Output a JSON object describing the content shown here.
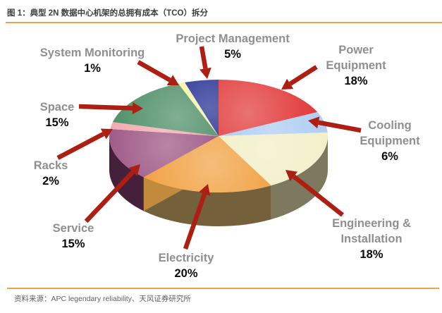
{
  "header": {
    "title": "图 1：典型 2N 数据中心机架的总拥有成本（TCO）拆分"
  },
  "footer": {
    "source": "资料来源：APC legendary reliability、天风证券研究所"
  },
  "theme": {
    "background": "#FFFFFF",
    "rule_color": "#F0A14E",
    "title_color": "#3D3D3D",
    "source_color": "#606060",
    "label_color": "#8F8F8F",
    "pct_color": "#0A0A0A",
    "arrow_color": "#AC1F12",
    "edge_wall_color": "#C28A3C"
  },
  "chart_data": {
    "type": "pie",
    "style": "3d",
    "direction": "clockwise-from-top",
    "title": "典型 2N 数据中心机架的总拥有成本（TCO）拆分",
    "unit": "%",
    "legend_position": "none",
    "categories": [
      "Power Equipment",
      "Cooling Equipment",
      "Engineering & Installation",
      "Electricity",
      "Service",
      "Racks",
      "Space",
      "System Monitoring",
      "Project Management"
    ],
    "values": [
      18,
      6,
      18,
      20,
      15,
      2,
      15,
      1,
      5
    ],
    "slices": [
      {
        "label": "Power Equipment",
        "value": 18,
        "pct_text": "18%",
        "color": "#E23B3B",
        "side_color": "#8C2C2C"
      },
      {
        "label": "Cooling Equipment",
        "value": 6,
        "pct_text": "6%",
        "color": "#ABCBF2",
        "side_color": "#5F7FA6"
      },
      {
        "label": "Engineering & Installation",
        "value": 18,
        "pct_text": "18%",
        "color": "#F2EFC8",
        "side_color": "#7C795F"
      },
      {
        "label": "Electricity",
        "value": 20,
        "pct_text": "20%",
        "color": "#F1A346",
        "side_color": "#75603C"
      },
      {
        "label": "Service",
        "value": 15,
        "pct_text": "15%",
        "color": "#9C5584",
        "side_color": "#44203A"
      },
      {
        "label": "Racks",
        "value": 2,
        "pct_text": "2%",
        "color": "#F2A6AC",
        "side_color": "#8A565C"
      },
      {
        "label": "Space",
        "value": 15,
        "pct_text": "15%",
        "color": "#4F8F68",
        "side_color": "#2F5840"
      },
      {
        "label": "System Monitoring",
        "value": 1,
        "pct_text": "1%",
        "color": "#F5F2A0",
        "side_color": "#8F8A55"
      },
      {
        "label": "Project Management",
        "value": 5,
        "pct_text": "5%",
        "color": "#232D93",
        "side_color": "#13195A"
      }
    ]
  }
}
